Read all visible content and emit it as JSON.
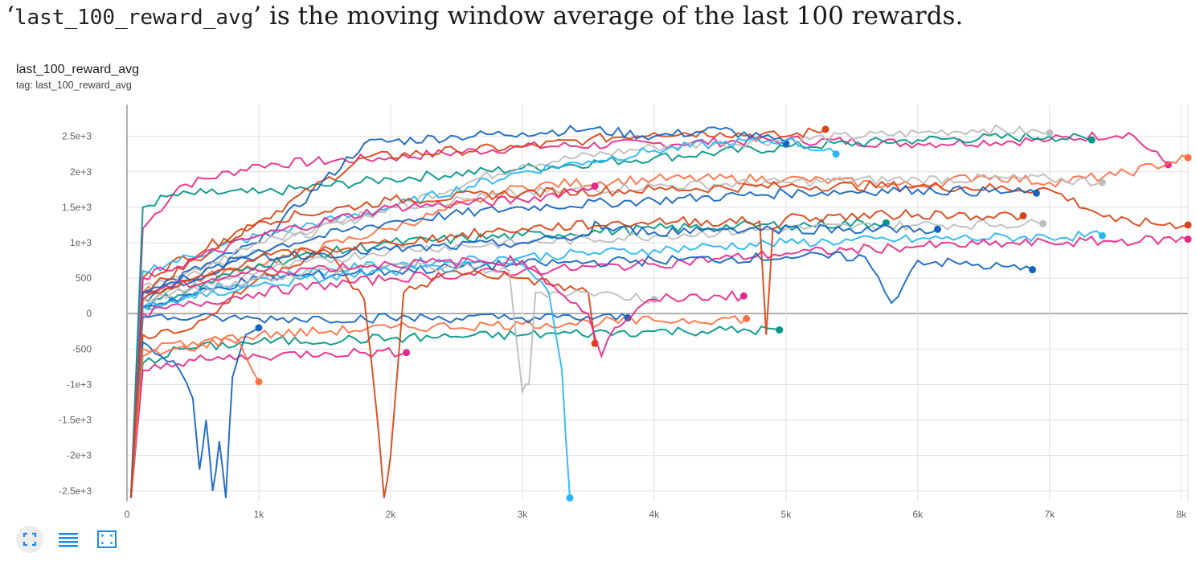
{
  "heading": {
    "open_quote": "‘",
    "code": "last_100_reward_avg",
    "close_quote": "’",
    "text": " is the moving window average of the last 100 rewards."
  },
  "card": {
    "title": "last_100_reward_avg",
    "tag": "tag: last_100_reward_avg"
  },
  "toolbar": {
    "fit_icon": "fit-domain-icon",
    "log_icon": "toggle-log-scale-icon",
    "expand_icon": "expand-icon",
    "accent": "#1e88e5"
  },
  "chart_data": {
    "type": "line",
    "title": "last_100_reward_avg",
    "xlim": [
      0,
      8050
    ],
    "ylim": [
      -2650,
      2950
    ],
    "x_ticks": [
      0,
      1000,
      2000,
      3000,
      4000,
      5000,
      6000,
      7000,
      8000
    ],
    "x_tick_labels": [
      "0",
      "1k",
      "2k",
      "3k",
      "4k",
      "5k",
      "6k",
      "7k",
      "8k"
    ],
    "y_ticks": [
      2500,
      2000,
      1500,
      1000,
      500,
      0,
      -500,
      -1000,
      -1500,
      -2000,
      -2500
    ],
    "y_tick_labels": [
      "2.5e+3",
      "2e+3",
      "1.5e+3",
      "1e+3",
      "500",
      "0",
      "-500",
      "-1e+3",
      "-1.5e+3",
      "-2e+3",
      "-2.5e+3"
    ],
    "grid": true,
    "legend": "none",
    "series": [
      {
        "color": "#e7298a",
        "x": [
          30,
          120,
          400,
          1000,
          2000,
          3000,
          4000,
          5000,
          6000,
          7000,
          7600,
          7900
        ],
        "y": [
          -2600,
          1200,
          1800,
          2100,
          2200,
          2350,
          2400,
          2450,
          2400,
          2450,
          2550,
          2100
        ]
      },
      {
        "color": "#009688",
        "x": [
          30,
          120,
          300,
          600,
          1000,
          2000,
          3000,
          4000,
          5000,
          6000,
          7000,
          7320
        ],
        "y": [
          -2600,
          1500,
          1650,
          1700,
          1700,
          1900,
          2050,
          2200,
          2350,
          2450,
          2500,
          2450
        ]
      },
      {
        "color": "#bdbdbd",
        "x": [
          30,
          120,
          1000,
          2000,
          3000,
          4000,
          5000,
          6000,
          6500,
          7000
        ],
        "y": [
          -2600,
          400,
          900,
          1500,
          2100,
          2350,
          2450,
          2550,
          2600,
          2550
        ]
      },
      {
        "color": "#d84315",
        "x": [
          30,
          120,
          1000,
          1800,
          2500,
          3000,
          3500,
          4000,
          4500,
          5000,
          5300
        ],
        "y": [
          -2600,
          500,
          1300,
          2200,
          2300,
          2350,
          2450,
          2550,
          2550,
          2500,
          2600
        ]
      },
      {
        "color": "#1565c0",
        "x": [
          30,
          120,
          1000,
          1800,
          2500,
          3000,
          3500,
          4000,
          4500,
          5000
        ],
        "y": [
          -2600,
          300,
          1000,
          2400,
          2500,
          2550,
          2600,
          2500,
          2600,
          2400
        ]
      },
      {
        "color": "#29b6f6",
        "x": [
          30,
          120,
          1000,
          2000,
          3000,
          3500,
          4000,
          4500,
          5000,
          5380
        ],
        "y": [
          -2600,
          600,
          1100,
          1500,
          2000,
          2150,
          2300,
          2400,
          2450,
          2250
        ]
      },
      {
        "color": "#ff7043",
        "x": [
          30,
          120,
          1000,
          2000,
          3000,
          4000,
          5000,
          6000,
          6500,
          7000,
          7500,
          8050
        ],
        "y": [
          -2600,
          300,
          700,
          1200,
          1800,
          1900,
          1900,
          1800,
          1950,
          1850,
          1950,
          2200
        ]
      },
      {
        "color": "#bdbdbd",
        "x": [
          30,
          120,
          1000,
          2000,
          3000,
          4000,
          5000,
          6000,
          7000,
          7400
        ],
        "y": [
          -2600,
          200,
          1000,
          1500,
          1700,
          1800,
          1850,
          1900,
          1900,
          1850
        ]
      },
      {
        "color": "#d84315",
        "x": [
          30,
          120,
          1000,
          2000,
          3000,
          4000,
          5000,
          6000,
          7000,
          7500,
          8050
        ],
        "y": [
          -2600,
          300,
          1300,
          1600,
          1700,
          1750,
          1800,
          1800,
          1750,
          1300,
          1250
        ]
      },
      {
        "color": "#1565c0",
        "x": [
          30,
          120,
          1000,
          2000,
          3000,
          4000,
          5000,
          6000,
          6900
        ],
        "y": [
          -2600,
          200,
          900,
          1300,
          1500,
          1600,
          1700,
          1750,
          1700
        ]
      },
      {
        "color": "#e7298a",
        "x": [
          30,
          120,
          1000,
          2000,
          3000,
          3550
        ],
        "y": [
          -2600,
          500,
          1100,
          1500,
          1600,
          1800
        ]
      },
      {
        "color": "#009688",
        "x": [
          30,
          120,
          1000,
          2000,
          3000,
          4000,
          5000,
          5760
        ],
        "y": [
          -2600,
          100,
          700,
          1000,
          1100,
          1200,
          1250,
          1280
        ]
      },
      {
        "color": "#bdbdbd",
        "x": [
          30,
          120,
          1000,
          2000,
          3000,
          4000,
          5000,
          6000,
          6950
        ],
        "y": [
          -2600,
          200,
          600,
          900,
          1000,
          1100,
          1200,
          1250,
          1270
        ]
      },
      {
        "color": "#29b6f6",
        "x": [
          30,
          120,
          1000,
          2000,
          3000,
          4000,
          5000,
          6000,
          7400
        ],
        "y": [
          -2600,
          100,
          500,
          700,
          800,
          900,
          1000,
          1050,
          1100
        ]
      },
      {
        "color": "#e7298a",
        "x": [
          30,
          120,
          1000,
          2000,
          3000,
          4000,
          5000,
          6000,
          7000,
          8050
        ],
        "y": [
          -2600,
          0,
          300,
          500,
          600,
          700,
          850,
          950,
          1000,
          1050
        ]
      },
      {
        "color": "#1565c0",
        "x": [
          30,
          120,
          1000,
          2000,
          3000,
          4000,
          5000,
          5600,
          5800,
          6000,
          6870
        ],
        "y": [
          -2600,
          100,
          500,
          600,
          700,
          750,
          800,
          800,
          150,
          750,
          620
        ]
      },
      {
        "color": "#009688",
        "x": [
          30,
          120,
          400,
          1000,
          2000,
          3000,
          4000,
          4950
        ],
        "y": [
          -2600,
          -700,
          -500,
          -400,
          -350,
          -300,
          -250,
          -230
        ]
      },
      {
        "color": "#ff7043",
        "x": [
          30,
          120,
          1000,
          2000,
          3000,
          4000,
          4700
        ],
        "y": [
          -2600,
          -600,
          -300,
          -200,
          -150,
          -100,
          -70
        ]
      },
      {
        "color": "#1565c0",
        "x": [
          30,
          120,
          500,
          1000,
          2000,
          3000,
          3800
        ],
        "y": [
          -2600,
          -50,
          -60,
          -70,
          -60,
          -60,
          -60
        ]
      },
      {
        "color": "#e7298a",
        "x": [
          30,
          120,
          300,
          600,
          1000,
          1500,
          2120
        ],
        "y": [
          -2600,
          -800,
          -700,
          -650,
          -600,
          -550,
          -550
        ]
      },
      {
        "color": "#d84315",
        "x": [
          30,
          120,
          500,
          1000,
          1500,
          1800,
          1900,
          1950,
          2000,
          2100,
          2500,
          3000,
          3500,
          3550
        ],
        "y": [
          -2600,
          -300,
          -200,
          500,
          900,
          200,
          -1500,
          -2600,
          -2000,
          300,
          600,
          500,
          300,
          -420
        ]
      },
      {
        "color": "#1565c0",
        "x": [
          30,
          120,
          400,
          500,
          550,
          600,
          650,
          700,
          750,
          800,
          900,
          1000
        ],
        "y": [
          -2600,
          -400,
          -800,
          -1200,
          -2200,
          -1500,
          -2500,
          -1800,
          -2600,
          -900,
          -300,
          -200
        ]
      },
      {
        "color": "#29b6f6",
        "x": [
          30,
          120,
          1000,
          2000,
          3000,
          3200,
          3300,
          3360
        ],
        "y": [
          -2600,
          100,
          400,
          600,
          700,
          300,
          -800,
          -2600
        ]
      },
      {
        "color": "#bdbdbd",
        "x": [
          30,
          120,
          1000,
          2000,
          2900,
          3000,
          3050,
          3100,
          3500,
          4000
        ],
        "y": [
          -2600,
          200,
          500,
          700,
          600,
          -1100,
          -1000,
          300,
          300,
          200
        ]
      },
      {
        "color": "#ff7043",
        "x": [
          30,
          120,
          500,
          800,
          900,
          1000
        ],
        "y": [
          -2600,
          -500,
          -400,
          -300,
          -600,
          -960
        ]
      },
      {
        "color": "#e7298a",
        "x": [
          30,
          120,
          1000,
          2000,
          3000,
          3500,
          3600,
          3700,
          4000,
          4500,
          4680
        ],
        "y": [
          -2600,
          300,
          600,
          700,
          750,
          0,
          -600,
          -200,
          200,
          250,
          250
        ]
      },
      {
        "color": "#1565c0",
        "x": [
          30,
          120,
          1000,
          2000,
          3000,
          3500,
          3550,
          3600,
          4000,
          4500,
          6150
        ],
        "y": [
          -2600,
          300,
          800,
          900,
          1000,
          1100,
          1300,
          1200,
          1150,
          1200,
          1190
        ]
      },
      {
        "color": "#d84315",
        "x": [
          30,
          120,
          1000,
          2000,
          3000,
          4000,
          4800,
          4850,
          4900,
          5000,
          6000,
          6800
        ],
        "y": [
          -2600,
          200,
          800,
          1000,
          1200,
          1300,
          1300,
          -300,
          1200,
          1350,
          1400,
          1380
        ]
      }
    ]
  }
}
